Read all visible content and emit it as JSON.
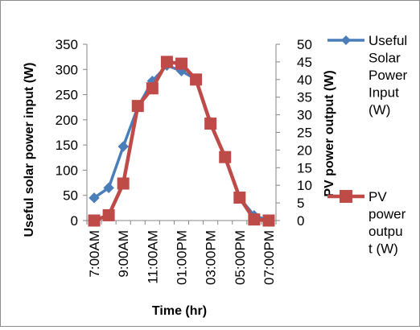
{
  "chart_data": {
    "type": "line",
    "title": "",
    "xlabel": "Time (hr)",
    "ylabel": "Useful solar power input (W)",
    "y2label": "PV power output (W)",
    "x": [
      "7:00AM",
      "8:00AM",
      "9:00AM",
      "10:00AM",
      "11:00AM",
      "12:00PM",
      "01:00PM",
      "02:00PM",
      "03:00PM",
      "04:00PM",
      "05:00PM",
      "06:00PM",
      "07:00PM"
    ],
    "x_tick_labels": [
      "7:00AM",
      "9:00AM",
      "11:00AM",
      "01:00PM",
      "03:00PM",
      "05:00PM",
      "07:00PM"
    ],
    "ylim": [
      0,
      350
    ],
    "y_ticks": [
      "0",
      "50",
      "100",
      "150",
      "200",
      "250",
      "300",
      "350"
    ],
    "y2lim": [
      0,
      50
    ],
    "y2_ticks": [
      "0",
      "5",
      "10",
      "15",
      "20",
      "25",
      "30",
      "35",
      "40",
      "45",
      "50"
    ],
    "grid": false,
    "legend_position": "right",
    "series": [
      {
        "name": "Useful Solar Power Input (W)",
        "legend_lines": [
          "Useful",
          "Solar",
          "Power",
          "Input",
          "(W)"
        ],
        "axis": "left",
        "color": "#4a7ebb",
        "marker": "diamond",
        "values": [
          45,
          65,
          147,
          225,
          277,
          308,
          297,
          280,
          195,
          125,
          45,
          10,
          0
        ]
      },
      {
        "name": "PV power output (W)",
        "legend_lines": [
          "PV",
          "power",
          "outpu",
          "t (W)"
        ],
        "axis": "right",
        "color": "#be4b48",
        "marker": "square",
        "values": [
          0,
          1.5,
          10.5,
          32.5,
          37.5,
          45,
          44.5,
          40,
          27.5,
          18,
          6.5,
          0.3,
          0
        ]
      }
    ]
  }
}
